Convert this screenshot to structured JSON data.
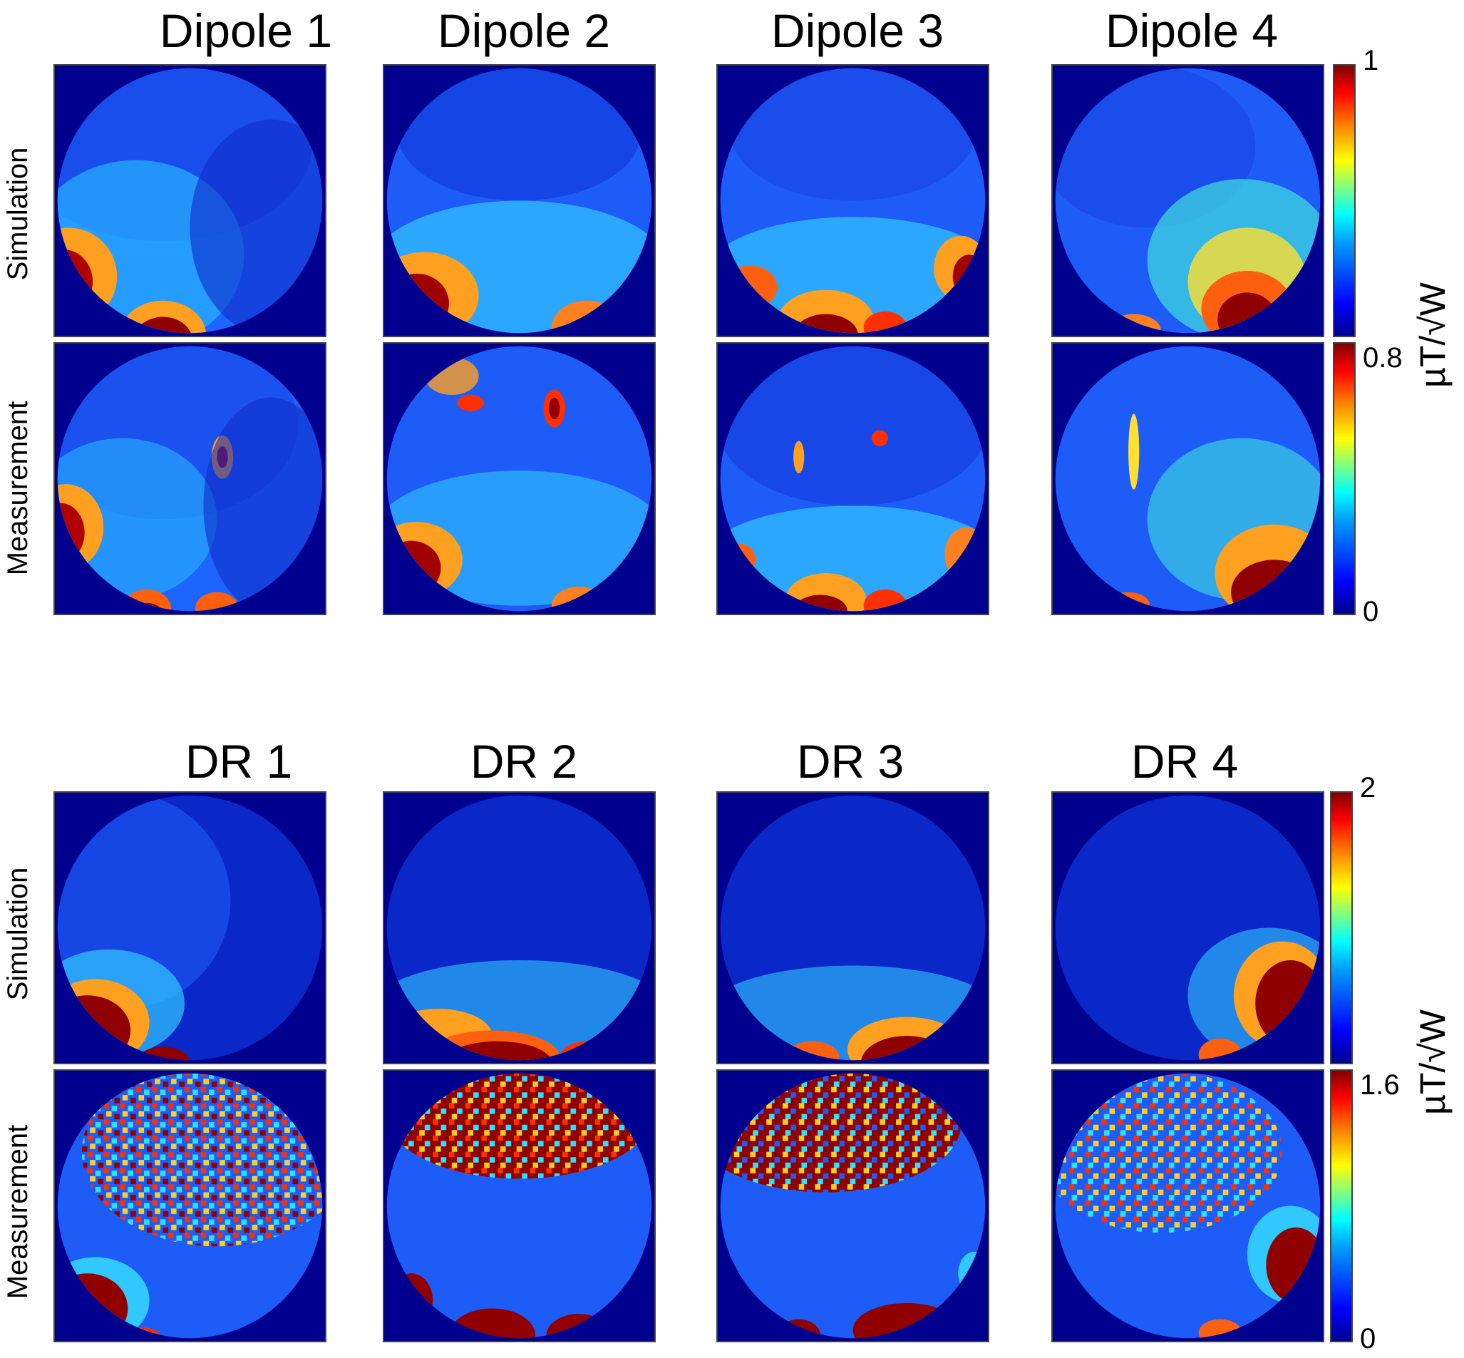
{
  "sections": [
    {
      "columns": [
        "Dipole 1",
        "Dipole 2",
        "Dipole 3",
        "Dipole 4"
      ],
      "rows": [
        "Simulation",
        "Measurement"
      ],
      "colorbars": [
        {
          "max_label": "1",
          "min_label": ""
        },
        {
          "max_label": "0.8",
          "min_label": "0"
        }
      ],
      "unit": "µT/√W"
    },
    {
      "columns": [
        "DR 1",
        "DR 2",
        "DR 3",
        "DR 4"
      ],
      "rows": [
        "Simulation",
        "Measurement"
      ],
      "colorbars": [
        {
          "max_label": "2",
          "min_label": ""
        },
        {
          "max_label": "1.6",
          "min_label": "0"
        }
      ],
      "unit": "µT/√W"
    }
  ],
  "colormap": "jet",
  "colors": {
    "background": "#00008f",
    "hot": "#800000",
    "axis": "#444444"
  }
}
